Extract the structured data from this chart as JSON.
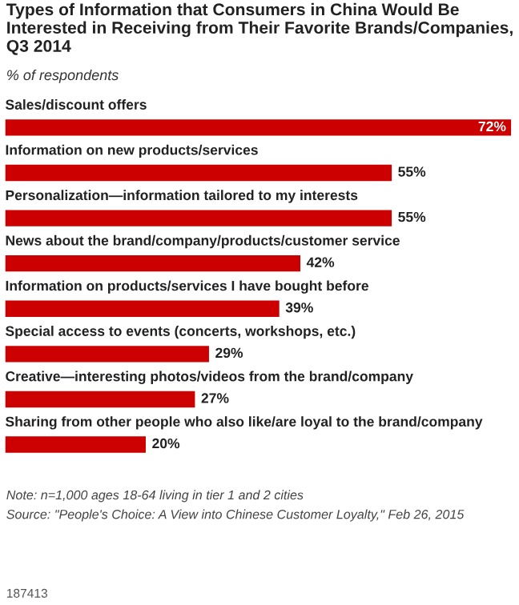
{
  "chart_data": {
    "type": "bar",
    "orientation": "horizontal",
    "title": "Types of Information that Consumers in China Would Be Interested in Receiving from Their Favorite Brands/Companies, Q3 2014",
    "subtitle": "% of respondents",
    "categories": [
      "Sales/discount offers",
      "Information on new products/services",
      "Personalization—information tailored to my interests",
      "News about the brand/company/products/customer service",
      "Information on products/services I have bought before",
      "Special access to events (concerts, workshops, etc.)",
      "Creative—interesting photos/videos from the brand/company",
      "Sharing from other people who also like/are loyal to the brand/company"
    ],
    "values": [
      72,
      55,
      55,
      42,
      39,
      29,
      27,
      20
    ],
    "value_labels": [
      "72%",
      "55%",
      "55%",
      "42%",
      "39%",
      "29%",
      "27%",
      "20%"
    ],
    "color": "#cc0000",
    "annotations": [
      "Note: n=1,000 ages 18-64 living in tier 1 and 2 cities",
      "Source: \"People's Choice: A View into Chinese Customer Loyalty,\" Feb 26, 2015",
      "187413"
    ]
  }
}
